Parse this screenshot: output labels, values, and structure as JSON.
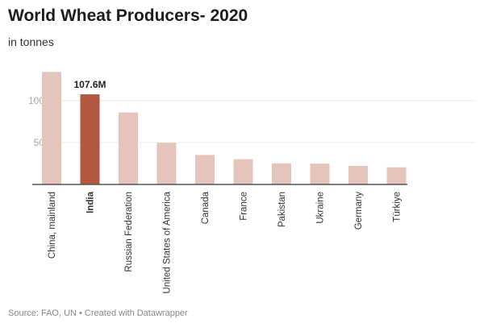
{
  "chart_data": {
    "type": "bar",
    "title": "World Wheat Producers- 2020",
    "subtitle": "in tonnes",
    "categories": [
      "China, mainland",
      "India",
      "Russian Federation",
      "United States of America",
      "Canada",
      "France",
      "Pakistan",
      "Ukraine",
      "Germany",
      "Türkiye"
    ],
    "values": [
      134.3,
      107.6,
      85.9,
      49.7,
      35.2,
      30.1,
      25.2,
      24.9,
      22.2,
      20.5
    ],
    "unit": "M",
    "highlight": "India",
    "highlight_label": "107.6M",
    "yticks": [
      {
        "value": 50,
        "label": "50M"
      },
      {
        "value": 100,
        "label": "100M"
      }
    ],
    "ylim": [
      0,
      140
    ],
    "grid": true,
    "colors": {
      "bar": "#e5c4bb",
      "highlight": "#b3573f"
    },
    "source": "Source: FAO, UN • Created with Datawrapper"
  }
}
